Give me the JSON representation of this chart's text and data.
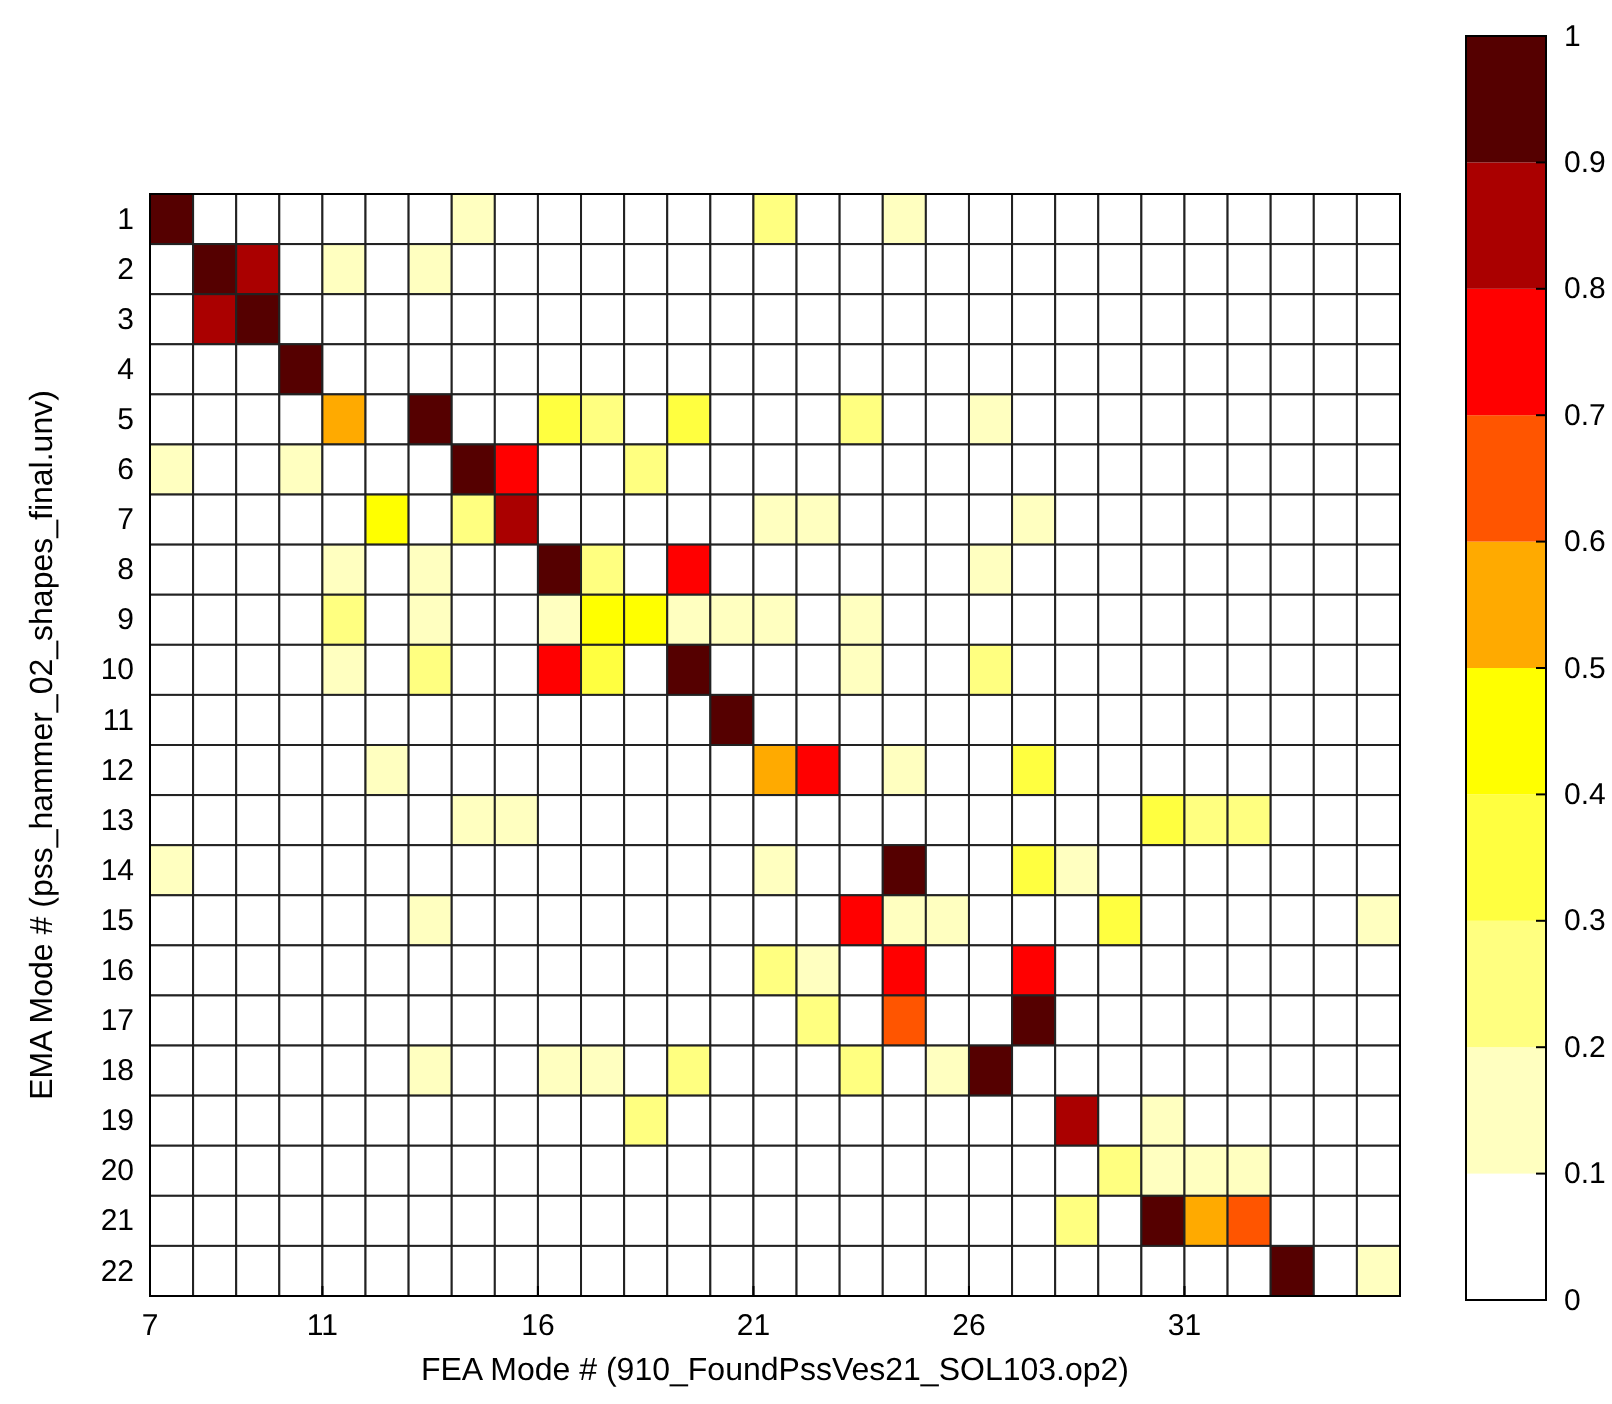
{
  "chart_data": {
    "type": "heatmap",
    "xlabel": "FEA Mode # (910_FoundPssVes21_SOL103.op2)",
    "ylabel": "EMA Mode # (pss_hammer_02_shapes_final.unv)",
    "x": [
      7.5,
      8.5,
      9.5,
      10.5,
      11.5,
      12.5,
      13.5,
      14.5,
      15.5,
      16.5,
      17.5,
      18.5,
      19.5,
      20.5,
      21.5,
      22.5,
      23.5,
      24.5,
      25.5,
      26.5,
      27.5,
      28.5,
      29.5,
      30.5,
      31.5,
      32.5,
      33.5,
      34.5,
      35.5
    ],
    "xlim": [
      7,
      36
    ],
    "xticks": [
      7,
      11,
      16,
      21,
      26,
      31
    ],
    "y_categories": [
      "1",
      "2",
      "3",
      "4",
      "5",
      "6",
      "7",
      "8",
      "9",
      "10",
      "11",
      "12",
      "13",
      "14",
      "15",
      "16",
      "17",
      "18",
      "19",
      "20",
      "21",
      "22"
    ],
    "cells": [
      [
        0.95,
        0.05,
        0.05,
        0.05,
        0.05,
        0.05,
        0.05,
        0.15,
        0.05,
        0.05,
        0.05,
        0.05,
        0.05,
        0.05,
        0.25,
        0.05,
        0.05,
        0.15,
        0.05,
        0.05,
        0.05,
        0.05,
        0.05,
        0.05,
        0.05,
        0.05,
        0.05,
        0.05,
        0.05
      ],
      [
        0.05,
        0.95,
        0.85,
        0.05,
        0.15,
        0.05,
        0.15,
        0.05,
        0.05,
        0.05,
        0.05,
        0.05,
        0.05,
        0.05,
        0.05,
        0.05,
        0.05,
        0.05,
        0.05,
        0.05,
        0.05,
        0.05,
        0.05,
        0.05,
        0.05,
        0.05,
        0.05,
        0.05,
        0.05
      ],
      [
        0.05,
        0.85,
        0.95,
        0.05,
        0.05,
        0.05,
        0.05,
        0.05,
        0.05,
        0.05,
        0.05,
        0.05,
        0.05,
        0.05,
        0.05,
        0.05,
        0.05,
        0.05,
        0.05,
        0.05,
        0.05,
        0.05,
        0.05,
        0.05,
        0.05,
        0.05,
        0.05,
        0.05,
        0.05
      ],
      [
        0.05,
        0.05,
        0.05,
        0.95,
        0.05,
        0.05,
        0.05,
        0.05,
        0.05,
        0.05,
        0.05,
        0.05,
        0.05,
        0.05,
        0.05,
        0.05,
        0.05,
        0.05,
        0.05,
        0.05,
        0.05,
        0.05,
        0.05,
        0.05,
        0.05,
        0.05,
        0.05,
        0.05,
        0.05
      ],
      [
        0.05,
        0.05,
        0.05,
        0.05,
        0.55,
        0.05,
        0.95,
        0.05,
        0.05,
        0.35,
        0.25,
        0.05,
        0.35,
        0.05,
        0.05,
        0.05,
        0.25,
        0.05,
        0.05,
        0.15,
        0.05,
        0.05,
        0.05,
        0.05,
        0.05,
        0.05,
        0.05,
        0.05,
        0.05
      ],
      [
        0.15,
        0.05,
        0.05,
        0.15,
        0.05,
        0.05,
        0.05,
        0.95,
        0.75,
        0.05,
        0.05,
        0.25,
        0.05,
        0.05,
        0.05,
        0.05,
        0.05,
        0.05,
        0.05,
        0.05,
        0.05,
        0.05,
        0.05,
        0.05,
        0.05,
        0.05,
        0.05,
        0.05,
        0.05
      ],
      [
        0.05,
        0.05,
        0.05,
        0.05,
        0.05,
        0.45,
        0.05,
        0.25,
        0.85,
        0.05,
        0.05,
        0.05,
        0.05,
        0.05,
        0.15,
        0.15,
        0.05,
        0.05,
        0.05,
        0.05,
        0.15,
        0.05,
        0.05,
        0.05,
        0.05,
        0.05,
        0.05,
        0.05,
        0.05
      ],
      [
        0.05,
        0.05,
        0.05,
        0.05,
        0.15,
        0.05,
        0.15,
        0.05,
        0.05,
        0.95,
        0.25,
        0.05,
        0.75,
        0.05,
        0.05,
        0.05,
        0.05,
        0.05,
        0.05,
        0.15,
        0.05,
        0.05,
        0.05,
        0.05,
        0.05,
        0.05,
        0.05,
        0.05,
        0.05
      ],
      [
        0.05,
        0.05,
        0.05,
        0.05,
        0.25,
        0.05,
        0.15,
        0.05,
        0.05,
        0.15,
        0.45,
        0.45,
        0.15,
        0.15,
        0.15,
        0.05,
        0.15,
        0.05,
        0.05,
        0.05,
        0.05,
        0.05,
        0.05,
        0.05,
        0.05,
        0.05,
        0.05,
        0.05,
        0.05
      ],
      [
        0.05,
        0.05,
        0.05,
        0.05,
        0.15,
        0.05,
        0.25,
        0.05,
        0.05,
        0.75,
        0.35,
        0.05,
        0.95,
        0.05,
        0.05,
        0.05,
        0.15,
        0.05,
        0.05,
        0.25,
        0.05,
        0.05,
        0.05,
        0.05,
        0.05,
        0.05,
        0.05,
        0.05,
        0.05
      ],
      [
        0.05,
        0.05,
        0.05,
        0.05,
        0.05,
        0.05,
        0.05,
        0.05,
        0.05,
        0.05,
        0.05,
        0.05,
        0.05,
        0.95,
        0.05,
        0.05,
        0.05,
        0.05,
        0.05,
        0.05,
        0.05,
        0.05,
        0.05,
        0.05,
        0.05,
        0.05,
        0.05,
        0.05,
        0.05
      ],
      [
        0.05,
        0.05,
        0.05,
        0.05,
        0.05,
        0.15,
        0.05,
        0.05,
        0.05,
        0.05,
        0.05,
        0.05,
        0.05,
        0.05,
        0.55,
        0.75,
        0.05,
        0.15,
        0.05,
        0.05,
        0.35,
        0.05,
        0.05,
        0.05,
        0.05,
        0.05,
        0.05,
        0.05,
        0.05
      ],
      [
        0.05,
        0.05,
        0.05,
        0.05,
        0.05,
        0.05,
        0.05,
        0.15,
        0.15,
        0.05,
        0.05,
        0.05,
        0.05,
        0.05,
        0.05,
        0.05,
        0.05,
        0.05,
        0.05,
        0.05,
        0.05,
        0.05,
        0.05,
        0.35,
        0.25,
        0.25,
        0.05,
        0.05,
        0.05
      ],
      [
        0.15,
        0.05,
        0.05,
        0.05,
        0.05,
        0.05,
        0.05,
        0.05,
        0.05,
        0.05,
        0.05,
        0.05,
        0.05,
        0.05,
        0.15,
        0.05,
        0.05,
        0.95,
        0.05,
        0.05,
        0.35,
        0.15,
        0.05,
        0.05,
        0.05,
        0.05,
        0.05,
        0.05,
        0.05
      ],
      [
        0.05,
        0.05,
        0.05,
        0.05,
        0.05,
        0.05,
        0.15,
        0.05,
        0.05,
        0.05,
        0.05,
        0.05,
        0.05,
        0.05,
        0.05,
        0.05,
        0.75,
        0.15,
        0.15,
        0.05,
        0.05,
        0.05,
        0.35,
        0.05,
        0.05,
        0.05,
        0.05,
        0.05,
        0.15
      ],
      [
        0.05,
        0.05,
        0.05,
        0.05,
        0.05,
        0.05,
        0.05,
        0.05,
        0.05,
        0.05,
        0.05,
        0.05,
        0.05,
        0.05,
        0.25,
        0.15,
        0.05,
        0.75,
        0.05,
        0.05,
        0.75,
        0.05,
        0.05,
        0.05,
        0.05,
        0.05,
        0.05,
        0.05,
        0.05
      ],
      [
        0.05,
        0.05,
        0.05,
        0.05,
        0.05,
        0.05,
        0.05,
        0.05,
        0.05,
        0.05,
        0.05,
        0.05,
        0.05,
        0.05,
        0.05,
        0.25,
        0.05,
        0.65,
        0.05,
        0.05,
        0.95,
        0.05,
        0.05,
        0.05,
        0.05,
        0.05,
        0.05,
        0.05,
        0.05
      ],
      [
        0.05,
        0.05,
        0.05,
        0.05,
        0.05,
        0.05,
        0.15,
        0.05,
        0.05,
        0.15,
        0.15,
        0.05,
        0.25,
        0.05,
        0.05,
        0.05,
        0.25,
        0.05,
        0.15,
        0.95,
        0.05,
        0.05,
        0.05,
        0.05,
        0.05,
        0.05,
        0.05,
        0.05,
        0.05
      ],
      [
        0.05,
        0.05,
        0.05,
        0.05,
        0.05,
        0.05,
        0.05,
        0.05,
        0.05,
        0.05,
        0.05,
        0.25,
        0.05,
        0.05,
        0.05,
        0.05,
        0.05,
        0.05,
        0.05,
        0.05,
        0.05,
        0.85,
        0.05,
        0.15,
        0.05,
        0.05,
        0.05,
        0.05,
        0.05
      ],
      [
        0.05,
        0.05,
        0.05,
        0.05,
        0.05,
        0.05,
        0.05,
        0.05,
        0.05,
        0.05,
        0.05,
        0.05,
        0.05,
        0.05,
        0.05,
        0.05,
        0.05,
        0.05,
        0.05,
        0.05,
        0.05,
        0.05,
        0.25,
        0.15,
        0.15,
        0.15,
        0.05,
        0.05,
        0.05
      ],
      [
        0.05,
        0.05,
        0.05,
        0.05,
        0.05,
        0.05,
        0.05,
        0.05,
        0.05,
        0.05,
        0.05,
        0.05,
        0.05,
        0.05,
        0.05,
        0.05,
        0.05,
        0.05,
        0.05,
        0.05,
        0.05,
        0.25,
        0.05,
        0.95,
        0.55,
        0.65,
        0.05,
        0.05,
        0.05
      ],
      [
        0.05,
        0.05,
        0.05,
        0.05,
        0.05,
        0.05,
        0.05,
        0.05,
        0.05,
        0.05,
        0.05,
        0.05,
        0.05,
        0.05,
        0.05,
        0.05,
        0.05,
        0.05,
        0.05,
        0.05,
        0.05,
        0.05,
        0.05,
        0.05,
        0.05,
        0.05,
        0.95,
        0.05,
        0.15
      ]
    ],
    "colors": [
      "#ffffff",
      "#ffffc0",
      "#ffff80",
      "#ffff40",
      "#ffff00",
      "#ffaa00",
      "#ff5500",
      "#ff0000",
      "#aa0000",
      "#550000"
    ],
    "clim": [
      0,
      1
    ],
    "cticks": [
      0,
      0.1,
      0.2,
      0.3,
      0.4,
      0.5,
      0.6,
      0.7,
      0.8,
      0.9,
      1
    ]
  }
}
